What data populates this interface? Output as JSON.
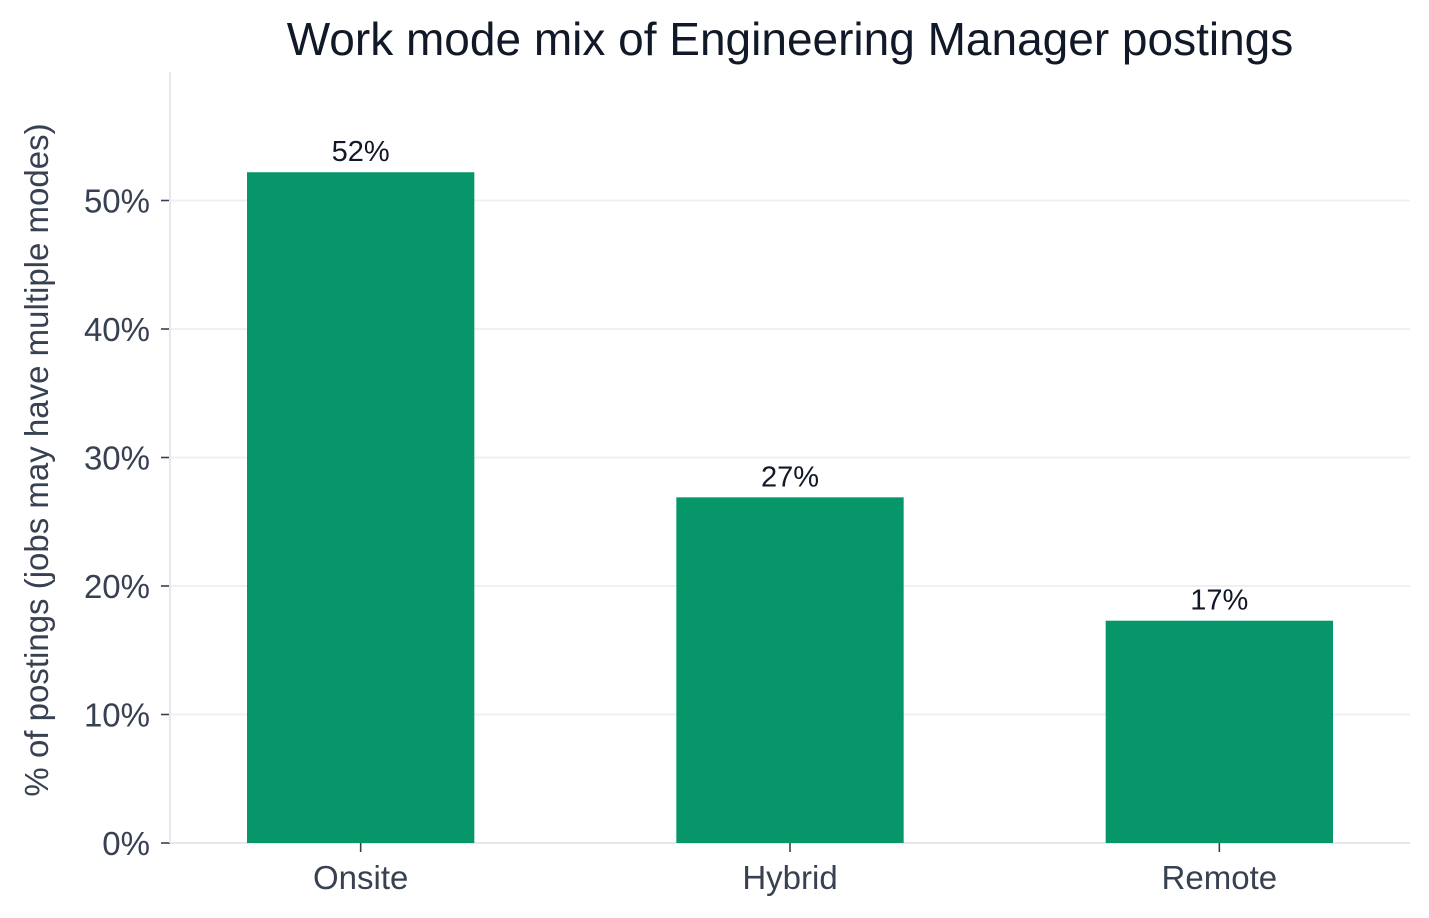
{
  "chart_data": {
    "type": "bar",
    "title": "Work mode mix of Engineering Manager postings",
    "xlabel": "",
    "ylabel": "% of postings (jobs may have multiple modes)",
    "categories": [
      "Onsite",
      "Hybrid",
      "Remote"
    ],
    "values": [
      52.2,
      26.9,
      17.3
    ],
    "data_labels": [
      "52%",
      "27%",
      "17%"
    ],
    "ylim": [
      0,
      60
    ],
    "yticks": [
      0,
      10,
      20,
      30,
      40,
      50
    ],
    "ytick_labels": [
      "0%",
      "10%",
      "20%",
      "30%",
      "40%",
      "50%"
    ],
    "grid": true,
    "legend": "none",
    "bar_color": "#07966a"
  }
}
